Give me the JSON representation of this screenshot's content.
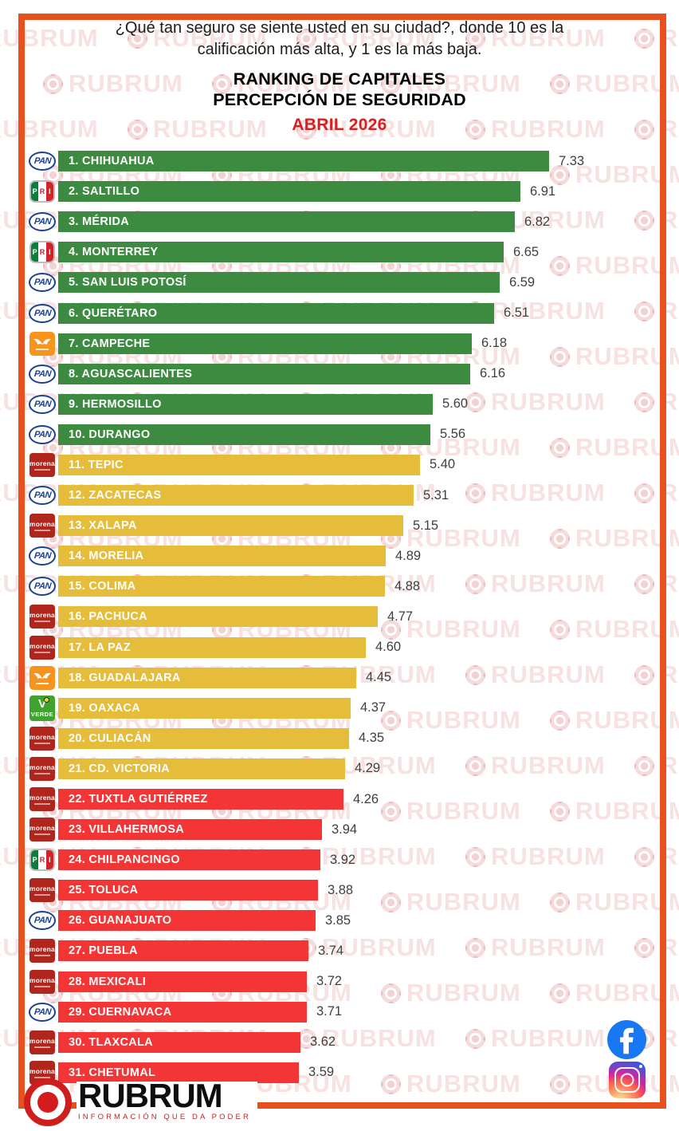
{
  "header": {
    "question_line1": "¿Qué tan seguro se siente usted en su ciudad?, donde 10 es la",
    "question_line2": "calificación más alta, y  1 es la más baja.",
    "title_line1": "RANKING DE CAPITALES",
    "title_line2": "PERCEPCIÓN DE SEGURIDAD",
    "subtitle": "ABRIL 2026"
  },
  "chart_data": {
    "type": "bar",
    "orientation": "horizontal",
    "title": "RANKING DE CAPITALES — PERCEPCIÓN DE SEGURIDAD — ABRIL 2026",
    "scale_note": "10 = calificación más alta, 1 = la más baja",
    "value_range": [
      0,
      10
    ],
    "tier_colors": {
      "green": "#3d8b41",
      "yellow": "#e6bc3b",
      "red": "#f43535"
    },
    "rows": [
      {
        "rank": 1,
        "city": "CHIHUAHUA",
        "party": "PAN",
        "tier": "green",
        "value": 7.33,
        "display": "7.33"
      },
      {
        "rank": 2,
        "city": "SALTILLO",
        "party": "PRI",
        "tier": "green",
        "value": 6.91,
        "display": "6.91"
      },
      {
        "rank": 3,
        "city": "MÉRIDA",
        "party": "PAN",
        "tier": "green",
        "value": 6.82,
        "display": "6.82"
      },
      {
        "rank": 4,
        "city": "MONTERREY",
        "party": "PRI",
        "tier": "green",
        "value": 6.65,
        "display": "6.65"
      },
      {
        "rank": 5,
        "city": "SAN LUIS POTOSÍ",
        "party": "PAN",
        "tier": "green",
        "value": 6.59,
        "display": "6.59"
      },
      {
        "rank": 6,
        "city": "QUERÉTARO",
        "party": "PAN",
        "tier": "green",
        "value": 6.51,
        "display": "6.51"
      },
      {
        "rank": 7,
        "city": "CAMPECHE",
        "party": "MC",
        "tier": "green",
        "value": 6.18,
        "display": "6.18"
      },
      {
        "rank": 8,
        "city": "AGUASCALIENTES",
        "party": "PAN",
        "tier": "green",
        "value": 6.16,
        "display": "6.16"
      },
      {
        "rank": 9,
        "city": "HERMOSILLO",
        "party": "PAN",
        "tier": "green",
        "value": 5.6,
        "display": "5.60"
      },
      {
        "rank": 10,
        "city": "DURANGO",
        "party": "PAN",
        "tier": "green",
        "value": 5.56,
        "display": "5.56"
      },
      {
        "rank": 11,
        "city": "TEPIC",
        "party": "MORENA",
        "tier": "yellow",
        "value": 5.4,
        "display": "5.40"
      },
      {
        "rank": 12,
        "city": "ZACATECAS",
        "party": "PAN",
        "tier": "yellow",
        "value": 5.31,
        "display": "5.31"
      },
      {
        "rank": 13,
        "city": "XALAPA",
        "party": "MORENA",
        "tier": "yellow",
        "value": 5.15,
        "display": "5.15"
      },
      {
        "rank": 14,
        "city": "MORELIA",
        "party": "PAN",
        "tier": "yellow",
        "value": 4.89,
        "display": "4.89"
      },
      {
        "rank": 15,
        "city": "COLIMA",
        "party": "PAN",
        "tier": "yellow",
        "value": 4.88,
        "display": "4.88"
      },
      {
        "rank": 16,
        "city": "PACHUCA",
        "party": "MORENA",
        "tier": "yellow",
        "value": 4.77,
        "display": "4.77"
      },
      {
        "rank": 17,
        "city": "LA PAZ",
        "party": "MORENA",
        "tier": "yellow",
        "value": 4.6,
        "display": "4.60"
      },
      {
        "rank": 18,
        "city": "GUADALAJARA",
        "party": "MC",
        "tier": "yellow",
        "value": 4.45,
        "display": "4.45"
      },
      {
        "rank": 19,
        "city": "OAXACA",
        "party": "VERDE",
        "tier": "yellow",
        "value": 4.37,
        "display": "4.37"
      },
      {
        "rank": 20,
        "city": "CULIACÁN",
        "party": "MORENA",
        "tier": "yellow",
        "value": 4.35,
        "display": "4.35"
      },
      {
        "rank": 21,
        "city": "CD. VICTORIA",
        "party": "MORENA",
        "tier": "yellow",
        "value": 4.29,
        "display": "4.29"
      },
      {
        "rank": 22,
        "city": "TUXTLA GUTIÉRREZ",
        "party": "MORENA",
        "tier": "red",
        "value": 4.26,
        "display": "4.26"
      },
      {
        "rank": 23,
        "city": "VILLAHERMOSA",
        "party": "MORENA",
        "tier": "red",
        "value": 3.94,
        "display": "3.94"
      },
      {
        "rank": 24,
        "city": "CHILPANCINGO",
        "party": "PRI",
        "tier": "red",
        "value": 3.92,
        "display": "3.92"
      },
      {
        "rank": 25,
        "city": "TOLUCA",
        "party": "MORENA",
        "tier": "red",
        "value": 3.88,
        "display": "3.88"
      },
      {
        "rank": 26,
        "city": "GUANAJUATO",
        "party": "PAN",
        "tier": "red",
        "value": 3.85,
        "display": "3.85"
      },
      {
        "rank": 27,
        "city": "PUEBLA",
        "party": "MORENA",
        "tier": "red",
        "value": 3.74,
        "display": "3.74"
      },
      {
        "rank": 28,
        "city": "MEXICALI",
        "party": "MORENA",
        "tier": "red",
        "value": 3.72,
        "display": "3.72"
      },
      {
        "rank": 29,
        "city": "CUERNAVACA",
        "party": "PAN",
        "tier": "red",
        "value": 3.71,
        "display": "3.71"
      },
      {
        "rank": 30,
        "city": "TLAXCALA",
        "party": "MORENA",
        "tier": "red",
        "value": 3.62,
        "display": "3.62"
      },
      {
        "rank": 31,
        "city": "CHETUMAL",
        "party": "MORENA",
        "tier": "red",
        "value": 3.59,
        "display": "3.59"
      }
    ]
  },
  "parties": {
    "PAN": {
      "label": "PAN",
      "color": "#1a4291"
    },
    "PRI": {
      "label": "PRI",
      "colors": [
        "#0b7e3e",
        "#ffffff",
        "#d2232a"
      ]
    },
    "MORENA": {
      "label": "morena",
      "color": "#b0251c"
    },
    "MC": {
      "label": "MC",
      "color": "#f7941d",
      "icon": "eagle-icon"
    },
    "VERDE": {
      "label": "VERDE",
      "color": "#3fa32e"
    }
  },
  "frame_color": "#e8511e",
  "watermark": {
    "text": "RUBRUM"
  },
  "footer": {
    "brand": "RUBRUM",
    "tagline": "INFORMACIÓN QUE DA PODER",
    "social": [
      "facebook-icon",
      "instagram-icon"
    ]
  }
}
